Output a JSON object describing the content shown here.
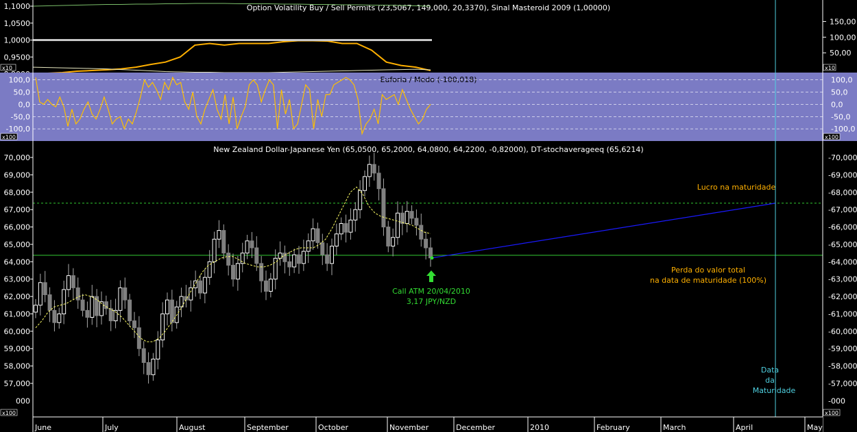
{
  "chart_data": [
    {
      "type": "line",
      "title": "Option Volatility Buy / Sell Permits (23,5067, 149,000, 20,3370), Sinal Masteroid 2009 (1,00000)",
      "left_ticks": [
        "1,1000",
        "1,0500",
        "1,0000",
        "0,9500",
        "0,9000"
      ],
      "right_ticks": [
        "150,00",
        "100,00",
        "50,00"
      ],
      "scale_badge": "x10",
      "ylim_left": [
        0.9,
        1.1
      ],
      "ylim_right": [
        0,
        175
      ],
      "series": [
        {
          "role": "green-upper",
          "color": "#7bbf6a",
          "values": [
            1.096,
            1.097,
            1.098,
            1.099,
            1.1,
            1.101,
            1.101,
            1.102,
            1.102,
            1.103,
            1.103,
            1.104,
            1.104,
            1.104,
            1.103,
            1.103,
            1.103,
            1.102,
            1.102,
            1.101,
            1.101,
            1.1,
            1.1,
            1.099,
            1.099,
            1.098,
            1.097,
            1.096
          ]
        },
        {
          "role": "permits-orange",
          "color": "#ffb000",
          "values": [
            0.901,
            0.902,
            0.904,
            0.908,
            0.91,
            0.912,
            0.915,
            0.92,
            0.928,
            0.935,
            0.95,
            0.985,
            0.99,
            0.985,
            0.99,
            0.99,
            0.99,
            0.995,
            0.998,
            0.998,
            0.997,
            0.99,
            0.99,
            0.97,
            0.935,
            0.925,
            0.92,
            0.91
          ]
        },
        {
          "role": "white-lower",
          "color": "#e8e8c0",
          "values": [
            0.92,
            0.919,
            0.918,
            0.917,
            0.916,
            0.915,
            0.913,
            0.911,
            0.909,
            0.907,
            0.906,
            0.905,
            0.905,
            0.904,
            0.904,
            0.904,
            0.904,
            0.905,
            0.906,
            0.907,
            0.908,
            0.909,
            0.91,
            0.911,
            0.912,
            0.913,
            0.914,
            0.912
          ]
        },
        {
          "role": "signal-gray",
          "color": "#c8c8c8",
          "values": [
            1.0,
            1.0
          ]
        }
      ]
    },
    {
      "type": "line",
      "title": "Euforia / Medo (-100,018)",
      "left_ticks": [
        "100,0",
        "50,0",
        "0,0",
        "-50,0",
        "-100,0"
      ],
      "right_ticks": [
        "100,0",
        "50,0",
        "0,0",
        "-50,0",
        "-100,0"
      ],
      "scale_badge": "x100",
      "ylim": [
        -150,
        130
      ],
      "series": [
        {
          "color": "#ffc000",
          "values": [
            110,
            10,
            0,
            20,
            0,
            -10,
            30,
            -10,
            -90,
            -20,
            -80,
            -60,
            -20,
            10,
            -40,
            -60,
            -20,
            30,
            -20,
            -80,
            -60,
            -50,
            -100,
            -60,
            -80,
            -30,
            30,
            100,
            70,
            90,
            60,
            20,
            90,
            60,
            110,
            80,
            90,
            10,
            -20,
            50,
            -50,
            -80,
            -20,
            20,
            60,
            -20,
            -60,
            40,
            -80,
            30,
            -100,
            -50,
            -10,
            80,
            100,
            80,
            10,
            60,
            100,
            80,
            -100,
            60,
            -40,
            20,
            -100,
            -80,
            0,
            80,
            60,
            -100,
            20,
            -50,
            40,
            40,
            80,
            90,
            100,
            110,
            100,
            80,
            20,
            -120,
            -80,
            -60,
            -20,
            -80,
            40,
            20,
            30,
            40,
            0,
            60,
            20,
            -20,
            -50,
            -80,
            -60,
            -20,
            0
          ]
        }
      ]
    },
    {
      "type": "candlestick",
      "title": "New Zealand Dollar-Japanese Yen (65,0500, 65,2000, 64,0800, 64,2200, -0,82000), DT-stochaverageeq (65,6214)",
      "y_ticks": [
        "70,000",
        "69,000",
        "68,000",
        "67,000",
        "66,000",
        "65,000",
        "64,000",
        "63,000",
        "62,000",
        "61,000",
        "60,000",
        "59,000",
        "58,000",
        "57,000"
      ],
      "y_tick_values": [
        70,
        69,
        68,
        67,
        66,
        65,
        64,
        63,
        62,
        61,
        60,
        59,
        58,
        57
      ],
      "bottom_tick": "000",
      "scale_badge": "x100",
      "ylim": [
        56.2,
        70.5
      ],
      "x_categories": [
        "June",
        "July",
        "August",
        "September",
        "October",
        "November",
        "December",
        "2010",
        "February",
        "March",
        "April",
        "May"
      ],
      "closes": [
        61.5,
        62.8,
        62.1,
        61.2,
        60.5,
        61.0,
        62.4,
        63.2,
        62.5,
        61.8,
        61.2,
        60.8,
        62.0,
        60.9,
        61.7,
        61.3,
        60.6,
        61.2,
        62.5,
        61.8,
        60.6,
        60.2,
        59.0,
        58.2,
        57.5,
        58.4,
        59.5,
        61.0,
        61.8,
        60.5,
        61.4,
        62.0,
        61.8,
        62.5,
        62.9,
        62.2,
        63.1,
        64.0,
        65.3,
        65.8,
        64.5,
        63.8,
        63.0,
        63.9,
        64.5,
        65.2,
        64.8,
        63.9,
        62.9,
        62.3,
        63.0,
        64.2,
        64.5,
        64.0,
        63.7,
        64.4,
        63.9,
        64.6,
        65.2,
        65.9,
        65.1,
        64.4,
        63.9,
        64.9,
        65.6,
        66.2,
        65.7,
        66.4,
        67.0,
        68.1,
        68.9,
        69.6,
        69.1,
        68.2,
        66.0,
        64.9,
        65.4,
        66.8,
        66.2,
        66.9,
        66.5,
        66.1,
        65.3,
        64.8,
        64.22
      ],
      "ma_values": [
        60.2,
        60.6,
        61.1,
        61.4,
        61.5,
        61.6,
        61.8,
        62.0,
        62.1,
        62.0,
        61.8,
        61.5,
        61.3,
        61.1,
        60.8,
        60.4,
        60.0,
        59.6,
        59.4,
        59.4,
        59.6,
        60.0,
        60.5,
        61.0,
        61.6,
        62.2,
        62.8,
        63.4,
        63.8,
        64.0,
        64.2,
        64.3,
        64.3,
        64.1,
        63.9,
        63.8,
        63.7,
        63.7,
        63.8,
        64.0,
        64.3,
        64.5,
        64.7,
        64.8,
        64.8,
        64.8,
        65.0,
        65.3,
        65.9,
        66.6,
        67.3,
        68.0,
        68.3,
        67.9,
        67.2,
        66.8,
        66.6,
        66.5,
        66.4,
        66.3,
        66.2,
        66.1,
        65.9,
        65.7,
        65.62
      ],
      "projection": {
        "x_from": "2009-11-20",
        "y_from": 64.22,
        "x_to": "2010-04-20",
        "y_to": 67.37,
        "color": "#1a1aff"
      },
      "strike_level": 64.37,
      "profit_level": 67.37,
      "maturity_date": "2010-04-20"
    }
  ],
  "annotations": {
    "profit_label": "Lucro na maturidade",
    "loss_label_1": "Perda do valor total",
    "loss_label_2": "na data de maturidade (100%)",
    "call_label_1": "Call ATM 20/04/2010",
    "call_label_2": "3,17 JPY/NZD",
    "maturity_1": "Data",
    "maturity_2": "da",
    "maturity_3": "Maturidade"
  },
  "colors": {
    "background": "#000000",
    "euforia_panel": "#7b7bc4",
    "permits_line": "#ffb000",
    "strike_line": "#33cc33",
    "profit_line": "#33cc33",
    "projection_line": "#1a1aff",
    "maturity_line": "#4fd0e0",
    "annotation_orange": "#ffb000",
    "annotation_green": "#33dd33",
    "annotation_cyan": "#4fd0e0",
    "candle_up": "#ffffff",
    "candle_down": "#808080"
  }
}
